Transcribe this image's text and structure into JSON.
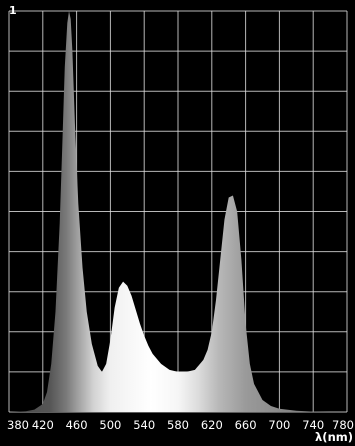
{
  "chart_data": {
    "type": "area",
    "xlabel": "λ(nm)",
    "y_top_label": "1",
    "xlim": [
      380,
      780
    ],
    "ylim": [
      0,
      1
    ],
    "x_ticks": [
      380,
      420,
      460,
      500,
      540,
      580,
      620,
      660,
      700,
      740,
      780
    ],
    "grid": true,
    "legend": "none",
    "background_color": "#000000",
    "grid_color": "#d9d9d9",
    "series": [
      {
        "x": [
          380,
          400,
          410,
          420,
          425,
          430,
          435,
          440,
          443,
          446,
          449,
          451,
          453,
          455,
          458,
          462,
          467,
          472,
          478,
          485,
          490,
          495,
          500,
          505,
          510,
          515,
          520,
          525,
          530,
          535,
          540,
          545,
          550,
          560,
          570,
          580,
          590,
          600,
          610,
          615,
          620,
          625,
          630,
          635,
          640,
          645,
          650,
          655,
          660,
          665,
          670,
          680,
          690,
          700,
          720,
          740,
          760,
          780
        ],
        "y": [
          0.0,
          0.002,
          0.006,
          0.02,
          0.05,
          0.12,
          0.25,
          0.47,
          0.66,
          0.86,
          0.97,
          1.0,
          0.98,
          0.9,
          0.72,
          0.52,
          0.36,
          0.25,
          0.17,
          0.115,
          0.1,
          0.12,
          0.18,
          0.26,
          0.31,
          0.325,
          0.315,
          0.29,
          0.255,
          0.22,
          0.19,
          0.165,
          0.145,
          0.12,
          0.105,
          0.1,
          0.1,
          0.105,
          0.13,
          0.155,
          0.2,
          0.28,
          0.38,
          0.48,
          0.535,
          0.54,
          0.5,
          0.38,
          0.22,
          0.12,
          0.07,
          0.03,
          0.015,
          0.008,
          0.003,
          0.001,
          0.0,
          0.0
        ]
      }
    ]
  }
}
